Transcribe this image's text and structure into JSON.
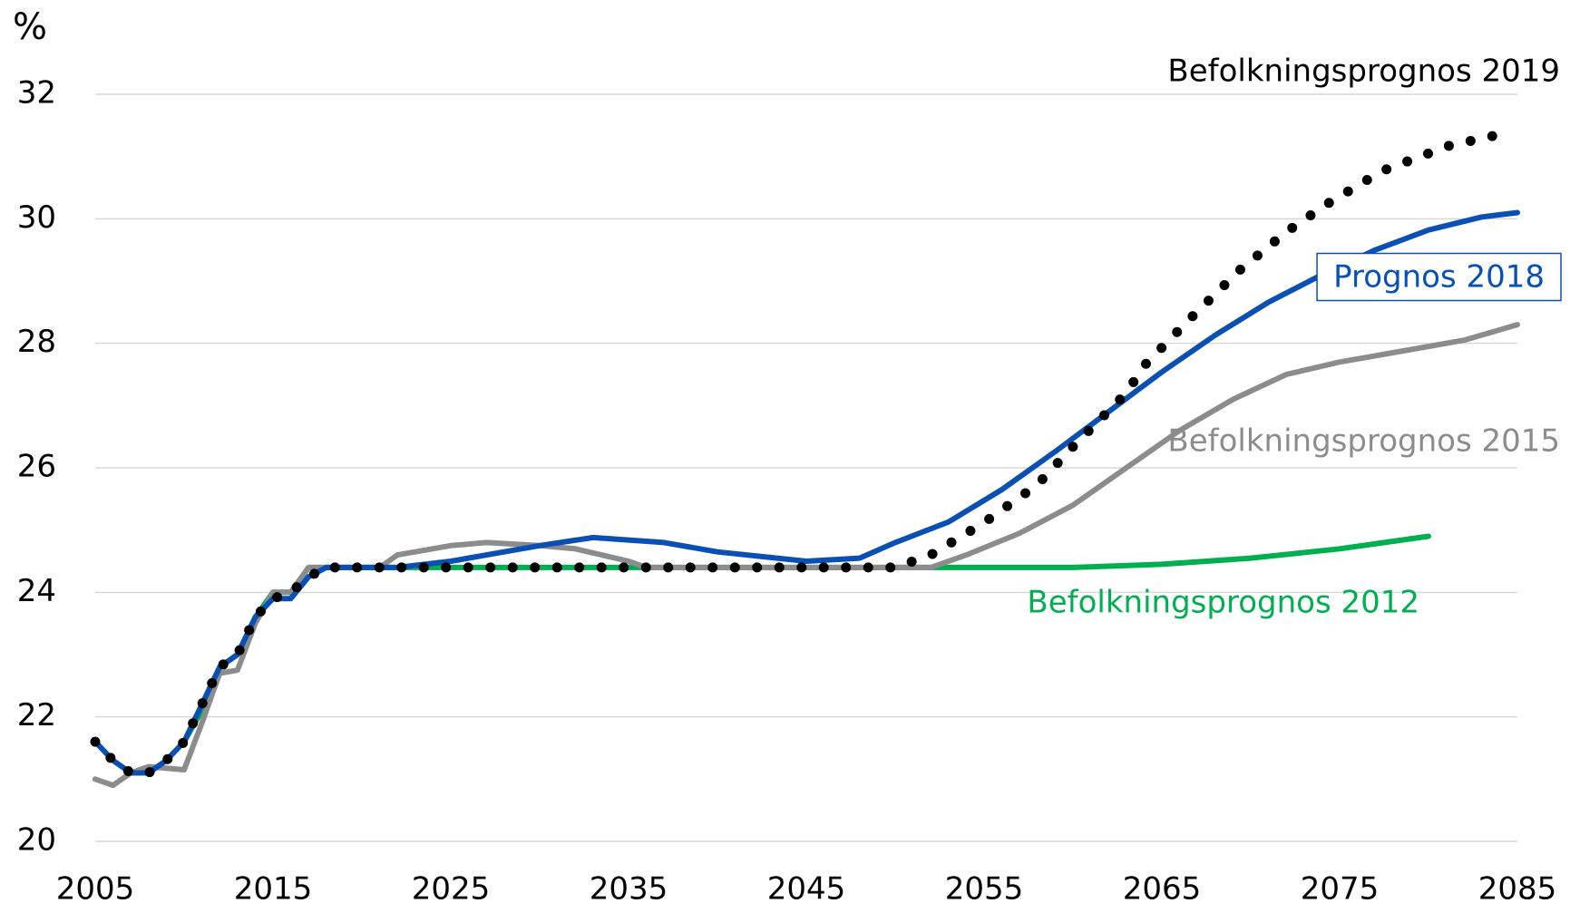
{
  "chart_data": {
    "type": "line",
    "y_label": "%",
    "xlim": [
      2005,
      2085
    ],
    "xticks": [
      2005,
      2015,
      2025,
      2035,
      2045,
      2055,
      2065,
      2075,
      2085
    ],
    "ylim": [
      20,
      32
    ],
    "yticks": [
      20,
      22,
      24,
      26,
      28,
      30,
      32
    ],
    "grid": true,
    "series": [
      {
        "name": "Befolkningsprognos 2012",
        "color": "#00b050",
        "style": "solid",
        "x": [
          2010,
          2011,
          2012,
          2013,
          2014,
          2015,
          2016,
          2017,
          2060,
          2065,
          2070,
          2075,
          2080
        ],
        "values": [
          21.6,
          22.1,
          22.8,
          23.0,
          23.6,
          24.0,
          24.0,
          24.4,
          24.4,
          24.45,
          24.55,
          24.7,
          24.9
        ]
      },
      {
        "name": "Befolkningsprognos 2015",
        "color": "#8c8c8c",
        "style": "solid",
        "x": [
          2005,
          2006,
          2007,
          2008,
          2010,
          2011,
          2012,
          2013,
          2014,
          2015,
          2016,
          2017,
          2021,
          2022,
          2025,
          2027,
          2030,
          2032,
          2035,
          2036,
          2052,
          2054,
          2057,
          2060,
          2063,
          2066,
          2069,
          2072,
          2075,
          2078,
          2082,
          2085
        ],
        "values": [
          21.0,
          20.9,
          21.1,
          21.2,
          21.15,
          21.9,
          22.7,
          22.75,
          23.5,
          24.0,
          24.0,
          24.4,
          24.4,
          24.6,
          24.75,
          24.8,
          24.75,
          24.7,
          24.5,
          24.4,
          24.4,
          24.6,
          24.95,
          25.4,
          26.0,
          26.6,
          27.1,
          27.5,
          27.7,
          27.85,
          28.05,
          28.3
        ]
      },
      {
        "name": "Prognos 2018",
        "color": "#0a50b4",
        "style": "solid",
        "x": [
          2005,
          2006,
          2007,
          2008,
          2009,
          2010,
          2011,
          2012,
          2013,
          2014,
          2015,
          2016,
          2017,
          2018,
          2022,
          2025,
          2030,
          2033,
          2037,
          2040,
          2045,
          2048,
          2050,
          2053,
          2056,
          2059,
          2062,
          2065,
          2068,
          2071,
          2074,
          2077,
          2080,
          2083,
          2085
        ],
        "values": [
          21.6,
          21.3,
          21.1,
          21.1,
          21.3,
          21.6,
          22.2,
          22.8,
          23.0,
          23.6,
          23.9,
          23.9,
          24.25,
          24.4,
          24.4,
          24.5,
          24.75,
          24.88,
          24.8,
          24.65,
          24.5,
          24.55,
          24.8,
          25.13,
          25.65,
          26.26,
          26.9,
          27.54,
          28.13,
          28.66,
          29.1,
          29.5,
          29.82,
          30.03,
          30.1
        ]
      },
      {
        "name": "Befolkningsprognos 2019",
        "color": "#000000",
        "style": "dotted",
        "x": [
          2005,
          2006,
          2007,
          2008,
          2009,
          2010,
          2011,
          2012,
          2013,
          2014,
          2015,
          2016,
          2017,
          2018,
          2050,
          2052,
          2055,
          2058,
          2060,
          2063,
          2064,
          2066.6,
          2069.4,
          2072,
          2074.3,
          2077.4,
          2081.1,
          2083.6
        ],
        "values": [
          21.6,
          21.3,
          21.1,
          21.1,
          21.3,
          21.6,
          22.2,
          22.8,
          23.0,
          23.6,
          23.9,
          24.0,
          24.25,
          24.4,
          24.4,
          24.6,
          25.12,
          25.73,
          26.34,
          27.2,
          27.64,
          28.4,
          29.18,
          29.79,
          30.24,
          30.77,
          31.17,
          31.33
        ]
      }
    ]
  }
}
